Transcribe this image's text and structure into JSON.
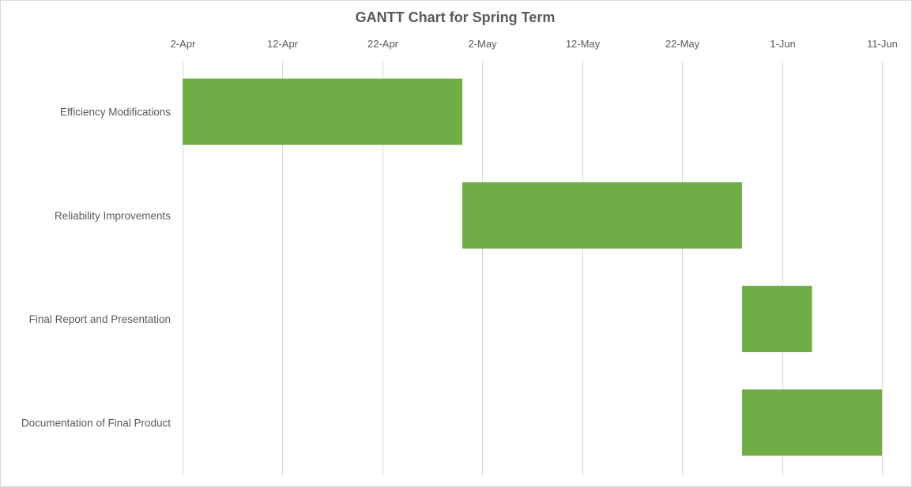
{
  "chart_data": {
    "type": "bar",
    "orientation": "horizontal",
    "subtype": "gantt",
    "title": "GANTT Chart for Spring Term",
    "xlabel": "",
    "ylabel": "",
    "x_axis_position": "top",
    "x_ticks": [
      "2-Apr",
      "12-Apr",
      "22-Apr",
      "2-May",
      "12-May",
      "22-May",
      "1-Jun",
      "11-Jun"
    ],
    "xlim": [
      "2-Apr",
      "11-Jun"
    ],
    "grid": "vertical",
    "legend": "none",
    "bar_color": "#70ad47",
    "categories": [
      "Efficiency Modifications",
      "Reliability Improvements",
      "Final Report and Presentation",
      "Documentation of Final Product"
    ],
    "tasks": [
      {
        "name": "Efficiency Modifications",
        "start": "2-Apr",
        "end": "30-Apr"
      },
      {
        "name": "Reliability Improvements",
        "start": "30-Apr",
        "end": "28-May"
      },
      {
        "name": "Final Report and Presentation",
        "start": "28-May",
        "end": "4-Jun"
      },
      {
        "name": "Documentation of Final Product",
        "start": "28-May",
        "end": "11-Jun"
      }
    ]
  }
}
